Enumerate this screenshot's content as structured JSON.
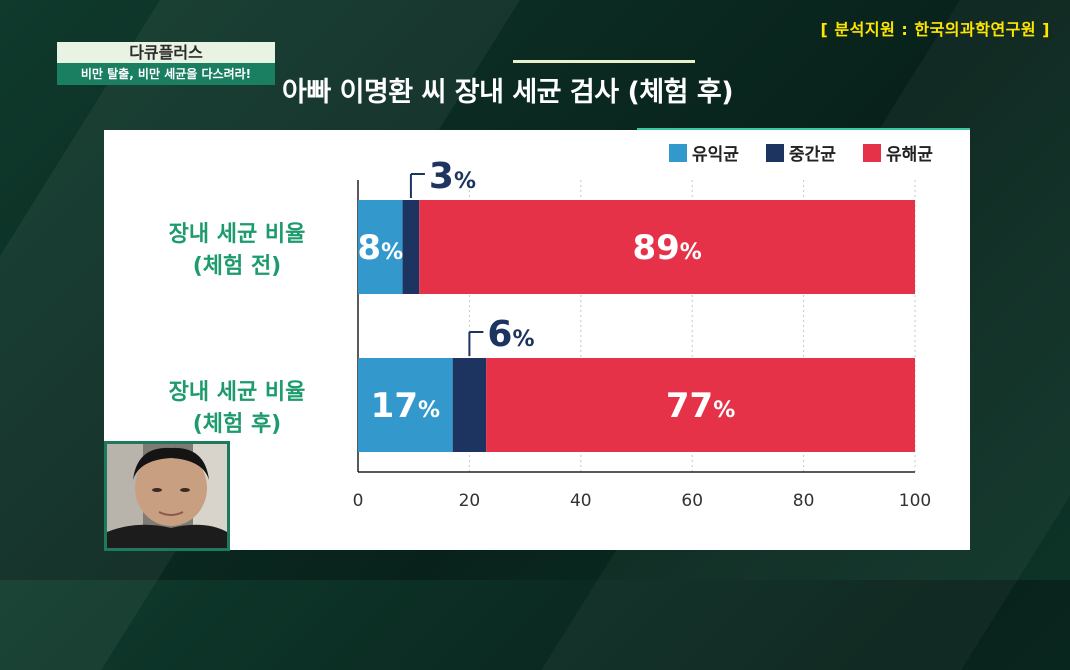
{
  "source": "[ 분석지원 : 한국의과학연구원 ]",
  "program": {
    "title": "다큐플러스",
    "subtitle": "비만 탈출, 비만 세균을 다스려라!"
  },
  "main_title": "아빠 이명환 씨 장내 세균 검사 (체험 후)",
  "colors": {
    "beneficial": "#3399cc",
    "neutral": "#1d3460",
    "harmful": "#e63248",
    "label_green": "#1d9b6c"
  },
  "chart_data": {
    "type": "bar",
    "orientation": "horizontal",
    "stacked": true,
    "categories": [
      [
        "장내 세균 비율",
        "(체험 전)"
      ],
      [
        "장내 세균 비율",
        "(체험 후)"
      ]
    ],
    "series": [
      {
        "name": "유익균",
        "values": [
          8,
          17
        ]
      },
      {
        "name": "중간균",
        "values": [
          3,
          6
        ]
      },
      {
        "name": "유해균",
        "values": [
          89,
          77
        ]
      }
    ],
    "data_labels": [
      [
        "8",
        "3",
        "89"
      ],
      [
        "17",
        "6",
        "77"
      ]
    ],
    "unit": "%",
    "xlim": [
      0,
      100
    ],
    "xticks": [
      "0",
      "20",
      "40",
      "60",
      "80",
      "100"
    ],
    "grid": true,
    "legend_position": "top-right"
  }
}
